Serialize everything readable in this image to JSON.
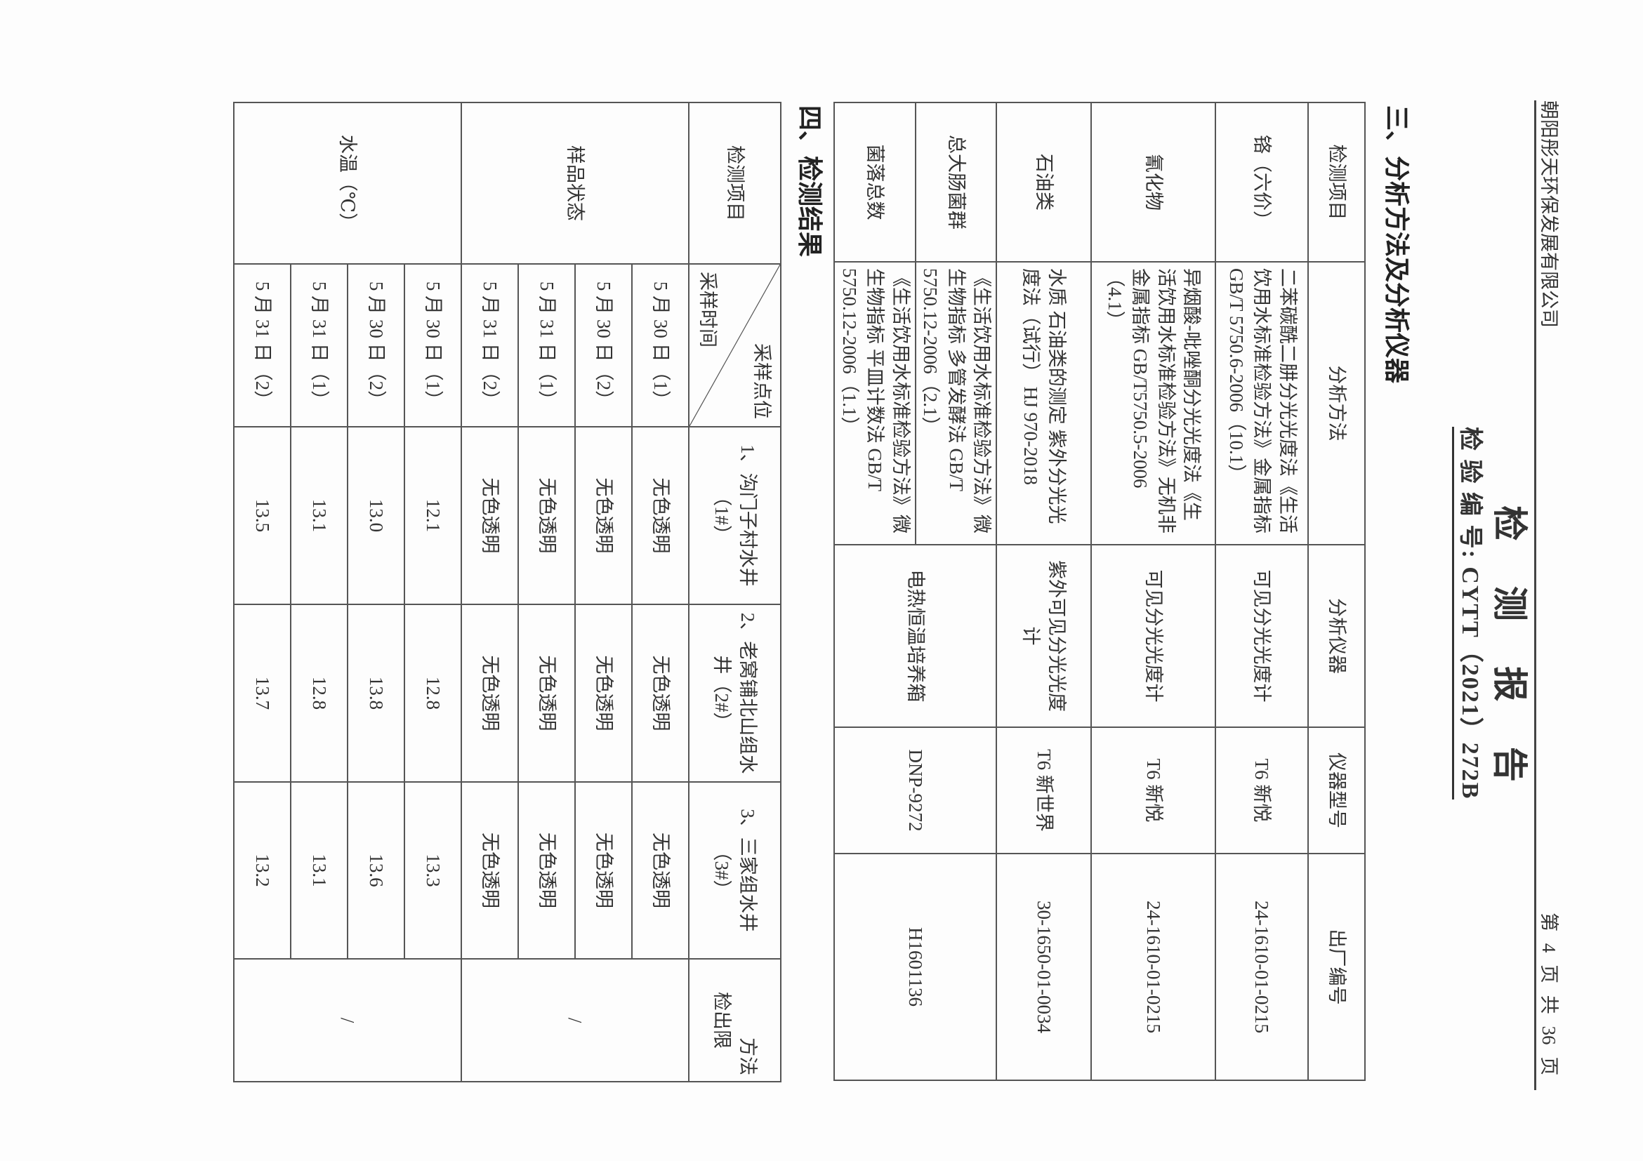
{
  "header": {
    "company": "朝阳彤天环保发展有限公司",
    "page_number": "第 4 页  共 36 页",
    "title": "检 测 报 告",
    "report_number": "检 验 编 号: CYTT（2021）272B"
  },
  "section3": {
    "heading": "三、分析方法及分析仪器",
    "columns": [
      "检测项目",
      "分析方法",
      "分析仪器",
      "仪器型号",
      "出厂编号"
    ],
    "rows": [
      {
        "item": "铬（六价）",
        "method": "二苯碳酰二肼分光光度法《生活饮用水标准检验方法》金属指标 GB/T 5750.6-2006（10.1）",
        "instrument": "可见分光光度计",
        "model": "T6 新悦",
        "serial": "24-1610-01-0215"
      },
      {
        "item": "氰化物",
        "method": "异烟酸-吡唑酮分光光度法《生活饮用水标准检验方法》无机非金属指标 GB/T5750.5-2006（4.1）",
        "instrument": "可见分光光度计",
        "model": "T6 新悦",
        "serial": "24-1610-01-0215"
      },
      {
        "item": "石油类",
        "method": "水质 石油类的测定 紫外分光光度法（试行） HJ 970-2018",
        "instrument": "紫外可见分光光度计",
        "model": "T6 新世界",
        "serial": "30-1650-01-0034"
      },
      {
        "item": "总大肠菌群",
        "method": "《生活饮用水标准检验方法》微生物指标 多管发酵法 GB/T 5750.12-2006（2.1）",
        "instrument": "电热恒温培养箱",
        "model": "DNP-9272",
        "serial": "H1601136"
      },
      {
        "item": "菌落总数",
        "method": "《生活饮用水标准检验方法》微生物指标 平皿计数法 GB/T 5750.12-2006（1.1）"
      }
    ]
  },
  "section4": {
    "heading": "四、检测结果",
    "col_item": "检测项目",
    "diag_top": "采样点位",
    "diag_bottom": "采样时间",
    "sites": [
      "1、沟门子村水井（1#）",
      "2、老窝铺北山组水井（2#）",
      "3、三家组水井（3#）"
    ],
    "limit_header_1": "方法",
    "limit_header_2": "检出限",
    "groups": [
      {
        "name": "样品状态",
        "limit": "/",
        "rows": [
          {
            "time": "5 月 30 日（1）",
            "values": [
              "无色透明",
              "无色透明",
              "无色透明"
            ]
          },
          {
            "time": "5 月 30 日（2）",
            "values": [
              "无色透明",
              "无色透明",
              "无色透明"
            ]
          },
          {
            "time": "5 月 31 日（1）",
            "values": [
              "无色透明",
              "无色透明",
              "无色透明"
            ]
          },
          {
            "time": "5 月 31 日（2）",
            "values": [
              "无色透明",
              "无色透明",
              "无色透明"
            ]
          }
        ]
      },
      {
        "name": "水温（℃）",
        "limit": "/",
        "rows": [
          {
            "time": "5 月 30 日（1）",
            "values": [
              "12.1",
              "12.8",
              "13.3"
            ]
          },
          {
            "time": "5 月 30 日（2）",
            "values": [
              "13.0",
              "13.8",
              "13.6"
            ]
          },
          {
            "time": "5 月 31 日（1）",
            "values": [
              "13.1",
              "12.8",
              "13.1"
            ]
          },
          {
            "time": "5 月 31 日（2）",
            "values": [
              "13.5",
              "13.7",
              "13.2"
            ]
          }
        ]
      }
    ]
  }
}
